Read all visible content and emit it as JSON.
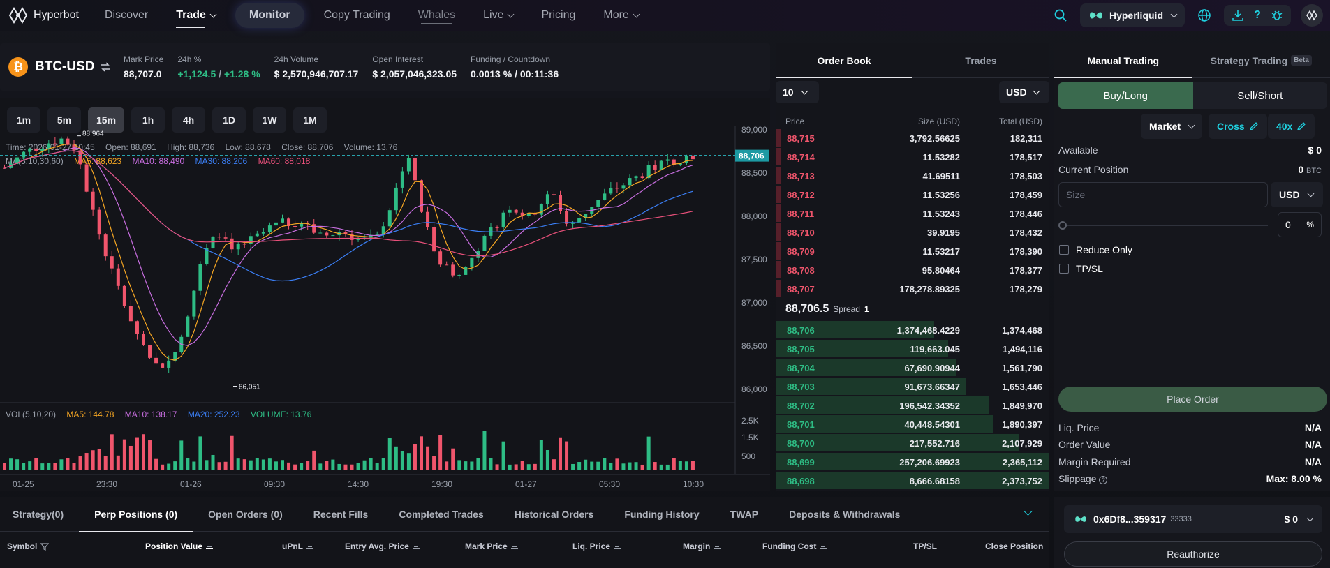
{
  "nav": {
    "brand": "Hyperbot",
    "items": [
      "Discover",
      "Trade",
      "Monitor",
      "Copy Trading",
      "Whales",
      "Live",
      "Pricing",
      "More"
    ],
    "exchange": "Hyperliquid"
  },
  "ticker": {
    "symbol": "BTC-USD",
    "mark_label": "Mark Price",
    "mark_value": "88,707.0",
    "change_label": "24h %",
    "change_abs": "+1,124.5",
    "change_sep": " / ",
    "change_pct": "+1.28 %",
    "volume_label": "24h Volume",
    "volume_value": "$ 2,570,946,707.17",
    "oi_label": "Open Interest",
    "oi_value": "$ 2,057,046,323.05",
    "funding_label": "Funding / Countdown",
    "funding_value": "0.0013 % / 00:11:36"
  },
  "timeframes": [
    "1m",
    "5m",
    "15m",
    "1h",
    "4h",
    "1D",
    "1W",
    "1M"
  ],
  "candle_info": {
    "time": "Time: 2026-01-27 10:45",
    "open": "Open: 88,691",
    "high": "High: 88,736",
    "low": "Low: 88,678",
    "close": "Close: 88,706",
    "volume": "Volume: 13.76"
  },
  "ma_info": {
    "label": "MA(5,10,30,60)",
    "ma5": "MA5: 88,623",
    "ma10": "MA10: 88,490",
    "ma30": "MA30: 88,206",
    "ma60": "MA60: 88,018"
  },
  "vol_info": {
    "label": "VOL(5,10,20)",
    "ma5": "MA5: 144.78",
    "ma10": "MA10: 138.17",
    "ma20": "MA20: 252.23",
    "volume": "VOLUME: 13.76"
  },
  "chart_data": {
    "type": "line",
    "title": "",
    "y_ticks": [
      "89,000",
      "88,500",
      "88,000",
      "87,500",
      "87,000",
      "86,500",
      "86,000"
    ],
    "ylim": [
      85950,
      89050
    ],
    "vol_ticks": [
      "2.5K",
      "1.5K",
      "500"
    ],
    "x_ticks": [
      "01-25",
      "23:30",
      "01-26",
      "09:30",
      "14:30",
      "19:30",
      "01-27",
      "05:30",
      "10:30"
    ],
    "last_price": "88,706",
    "high_marker": "88,964",
    "low_marker": "86,051",
    "colors": {
      "up": "#2ebd85",
      "down": "#f0556c",
      "ma5": "#f5a623",
      "ma10": "#c86ee0",
      "ma30": "#3b7ff5",
      "ma60": "#e8507a"
    }
  },
  "orderbook": {
    "tabs": [
      "Order Book",
      "Trades"
    ],
    "depth": "10",
    "currency": "USD",
    "headers": [
      "Price",
      "Size (USD)",
      "Total (USD)"
    ],
    "asks": [
      [
        "88,715",
        "3,792.56625",
        "182,311"
      ],
      [
        "88,714",
        "11.53282",
        "178,517"
      ],
      [
        "88,713",
        "41.69511",
        "178,503"
      ],
      [
        "88,712",
        "11.53256",
        "178,459"
      ],
      [
        "88,711",
        "11.53243",
        "178,446"
      ],
      [
        "88,710",
        "39.9195",
        "178,432"
      ],
      [
        "88,709",
        "11.53217",
        "178,390"
      ],
      [
        "88,708",
        "95.80464",
        "178,377"
      ],
      [
        "88,707",
        "178,278.89325",
        "178,279"
      ]
    ],
    "mid_price": "88,706.5",
    "spread_label": "Spread",
    "spread_value": "1",
    "bids": [
      [
        "88,706",
        "1,374,468.4229",
        "1,374,468"
      ],
      [
        "88,705",
        "119,663.045",
        "1,494,116"
      ],
      [
        "88,704",
        "67,690.90944",
        "1,561,790"
      ],
      [
        "88,703",
        "91,673.66347",
        "1,653,446"
      ],
      [
        "88,702",
        "196,542.34352",
        "1,849,970"
      ],
      [
        "88,701",
        "40,448.54301",
        "1,890,397"
      ],
      [
        "88,700",
        "217,552.716",
        "2,107,929"
      ],
      [
        "88,699",
        "257,206.69923",
        "2,365,112"
      ],
      [
        "88,698",
        "8,666.68158",
        "2,373,752"
      ]
    ]
  },
  "trade_panel": {
    "tabs": [
      "Manual Trading",
      "Strategy Trading"
    ],
    "beta": "Beta",
    "buy": "Buy/Long",
    "sell": "Sell/Short",
    "order_type": "Market",
    "margin_mode": "Cross",
    "leverage": "40x",
    "available_label": "Available",
    "available_value": "$ 0",
    "position_label": "Current Position",
    "position_value": "0",
    "position_unit": "BTC",
    "size_placeholder": "Size",
    "size_unit": "USD",
    "percent_value": "0",
    "percent_unit": "%",
    "reduce_only": "Reduce Only",
    "tpsl": "TP/SL",
    "place_order": "Place Order",
    "liq_label": "Liq. Price",
    "liq_value": "N/A",
    "order_value_label": "Order Value",
    "order_value": "N/A",
    "margin_label": "Margin Required",
    "margin_value": "N/A",
    "slippage_label": "Slippage",
    "slippage_value": "Max: 8.00 %"
  },
  "bottom": {
    "tabs": [
      "Strategy(0)",
      "Perp Positions (0)",
      "Open Orders (0)",
      "Recent Fills",
      "Completed Trades",
      "Historical Orders",
      "Funding History",
      "TWAP",
      "Deposits & Withdrawals"
    ],
    "columns": [
      "Symbol",
      "Position Value",
      "uPnL",
      "Entry Avg. Price",
      "Mark Price",
      "Liq. Price",
      "Margin",
      "Funding Cost",
      "TP/SL",
      "Close Position"
    ]
  },
  "wallet": {
    "address": "0x6Df8...359317",
    "id": "33333",
    "balance": "$ 0",
    "reauthorize": "Reauthorize"
  }
}
